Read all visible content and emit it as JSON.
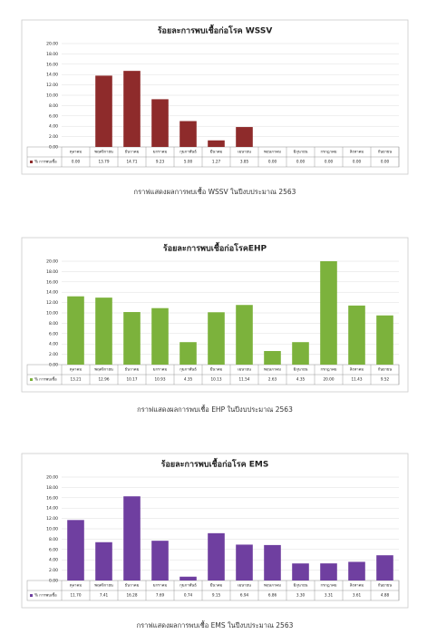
{
  "chart_data": [
    {
      "type": "bar",
      "title": "ร้อยละการพบเชื้อก่อโรค WSSV",
      "caption": "กราฟแสดงผลการพบเชื้อ WSSV ในปีงบประมาณ 2563",
      "categories": [
        "ตุลาคม",
        "พฤศจิกายน",
        "ธันวาคม",
        "มกราคม",
        "กุมภาพันธ์",
        "มีนาคม",
        "เมษายน",
        "พฤษภาคม",
        "มิถุนายน",
        "กรกฎาคม",
        "สิงหาคม",
        "กันยายน"
      ],
      "series": [
        {
          "name": "% การพบเชื้อ",
          "color": "#8e2b2b",
          "values": [
            0,
            13.79,
            14.71,
            9.23,
            5,
            1.27,
            3.85,
            0,
            0,
            0,
            0,
            0
          ],
          "value_labels": [
            "0.00",
            "13.79",
            "14.71",
            "9.23",
            "5.00",
            "1.27",
            "3.85",
            "0.00",
            "0.00",
            "0.00",
            "0.00",
            "0.00"
          ]
        }
      ],
      "ylim": [
        0,
        20
      ],
      "yticks": [
        {
          "value": 0,
          "label": "0.00"
        },
        {
          "value": 2,
          "label": "2.00"
        },
        {
          "value": 4,
          "label": "4.00"
        },
        {
          "value": 6,
          "label": "6.00"
        },
        {
          "value": 8,
          "label": "8.00"
        },
        {
          "value": 10,
          "label": "10.00"
        },
        {
          "value": 12,
          "label": "12.00"
        },
        {
          "value": 14,
          "label": "14.00"
        },
        {
          "value": 16,
          "label": "16.00"
        },
        {
          "value": 18,
          "label": "18.00"
        },
        {
          "value": 20,
          "label": "20.00"
        }
      ],
      "grid": true
    },
    {
      "type": "bar",
      "title": "ร้อยละการพบเชื้อก่อโรคEHP",
      "caption": "กราฟแสดงผลการพบเชื้อ EHP ในปีงบประมาณ 2563",
      "categories": [
        "ตุลาคม",
        "พฤศจิกายน",
        "ธันวาคม",
        "มกราคม",
        "กุมภาพันธ์",
        "มีนาคม",
        "เมษายน",
        "พฤษภาคม",
        "มิถุนายน",
        "กรกฎาคม",
        "สิงหาคม",
        "กันยายน"
      ],
      "series": [
        {
          "name": "% การพบเชื้อ",
          "color": "#7cb23c",
          "values": [
            13.21,
            12.96,
            10.17,
            10.93,
            4.35,
            10.13,
            11.54,
            2.63,
            4.35,
            20,
            11.43,
            9.52
          ],
          "value_labels": [
            "13.21",
            "12.96",
            "10.17",
            "10.93",
            "4.35",
            "10.13",
            "11.54",
            "2.63",
            "4.35",
            "20.00",
            "11.43",
            "9.52"
          ]
        }
      ],
      "ylim": [
        0,
        20
      ],
      "yticks": [
        {
          "value": 0,
          "label": "0.00"
        },
        {
          "value": 2,
          "label": "2.00"
        },
        {
          "value": 4,
          "label": "4.00"
        },
        {
          "value": 6,
          "label": "6.00"
        },
        {
          "value": 8,
          "label": "8.00"
        },
        {
          "value": 10,
          "label": "10.00"
        },
        {
          "value": 12,
          "label": "12.00"
        },
        {
          "value": 14,
          "label": "14.00"
        },
        {
          "value": 16,
          "label": "16.00"
        },
        {
          "value": 18,
          "label": "18.00"
        },
        {
          "value": 20,
          "label": "20.00"
        }
      ],
      "grid": true
    },
    {
      "type": "bar",
      "title": "ร้อยละการพบเชื้อก่อโรค EMS",
      "caption": "กราฟแสดงผลการพบเชื้อ EMS ในปีงบประมาณ 2563",
      "categories": [
        "ตุลาคม",
        "พฤศจิกายน",
        "ธันวาคม",
        "มกราคม",
        "กุมภาพันธ์",
        "มีนาคม",
        "เมษายน",
        "พฤษภาคม",
        "มิถุนายน",
        "กรกฎาคม",
        "สิงหาคม",
        "กันยายน"
      ],
      "series": [
        {
          "name": "% การพบเชื้อ",
          "color": "#6f3fa0",
          "values": [
            11.7,
            7.41,
            16.28,
            7.69,
            0.74,
            9.15,
            6.94,
            6.86,
            3.3,
            3.31,
            3.61,
            4.88
          ],
          "value_labels": [
            "11.70",
            "7.41",
            "16.28",
            "7.69",
            "0.74",
            "9.15",
            "6.94",
            "6.86",
            "3.30",
            "3.31",
            "3.61",
            "4.88"
          ]
        }
      ],
      "ylim": [
        0,
        20
      ],
      "yticks": [
        {
          "value": 0,
          "label": "0.00"
        },
        {
          "value": 2,
          "label": "2.00"
        },
        {
          "value": 4,
          "label": "4.00"
        },
        {
          "value": 6,
          "label": "6.00"
        },
        {
          "value": 8,
          "label": "8.00"
        },
        {
          "value": 10,
          "label": "10.00"
        },
        {
          "value": 12,
          "label": "12.00"
        },
        {
          "value": 14,
          "label": "14.00"
        },
        {
          "value": 16,
          "label": "16.00"
        },
        {
          "value": 18,
          "label": "18.00"
        },
        {
          "value": 20,
          "label": "20.00"
        }
      ],
      "grid": true
    }
  ]
}
